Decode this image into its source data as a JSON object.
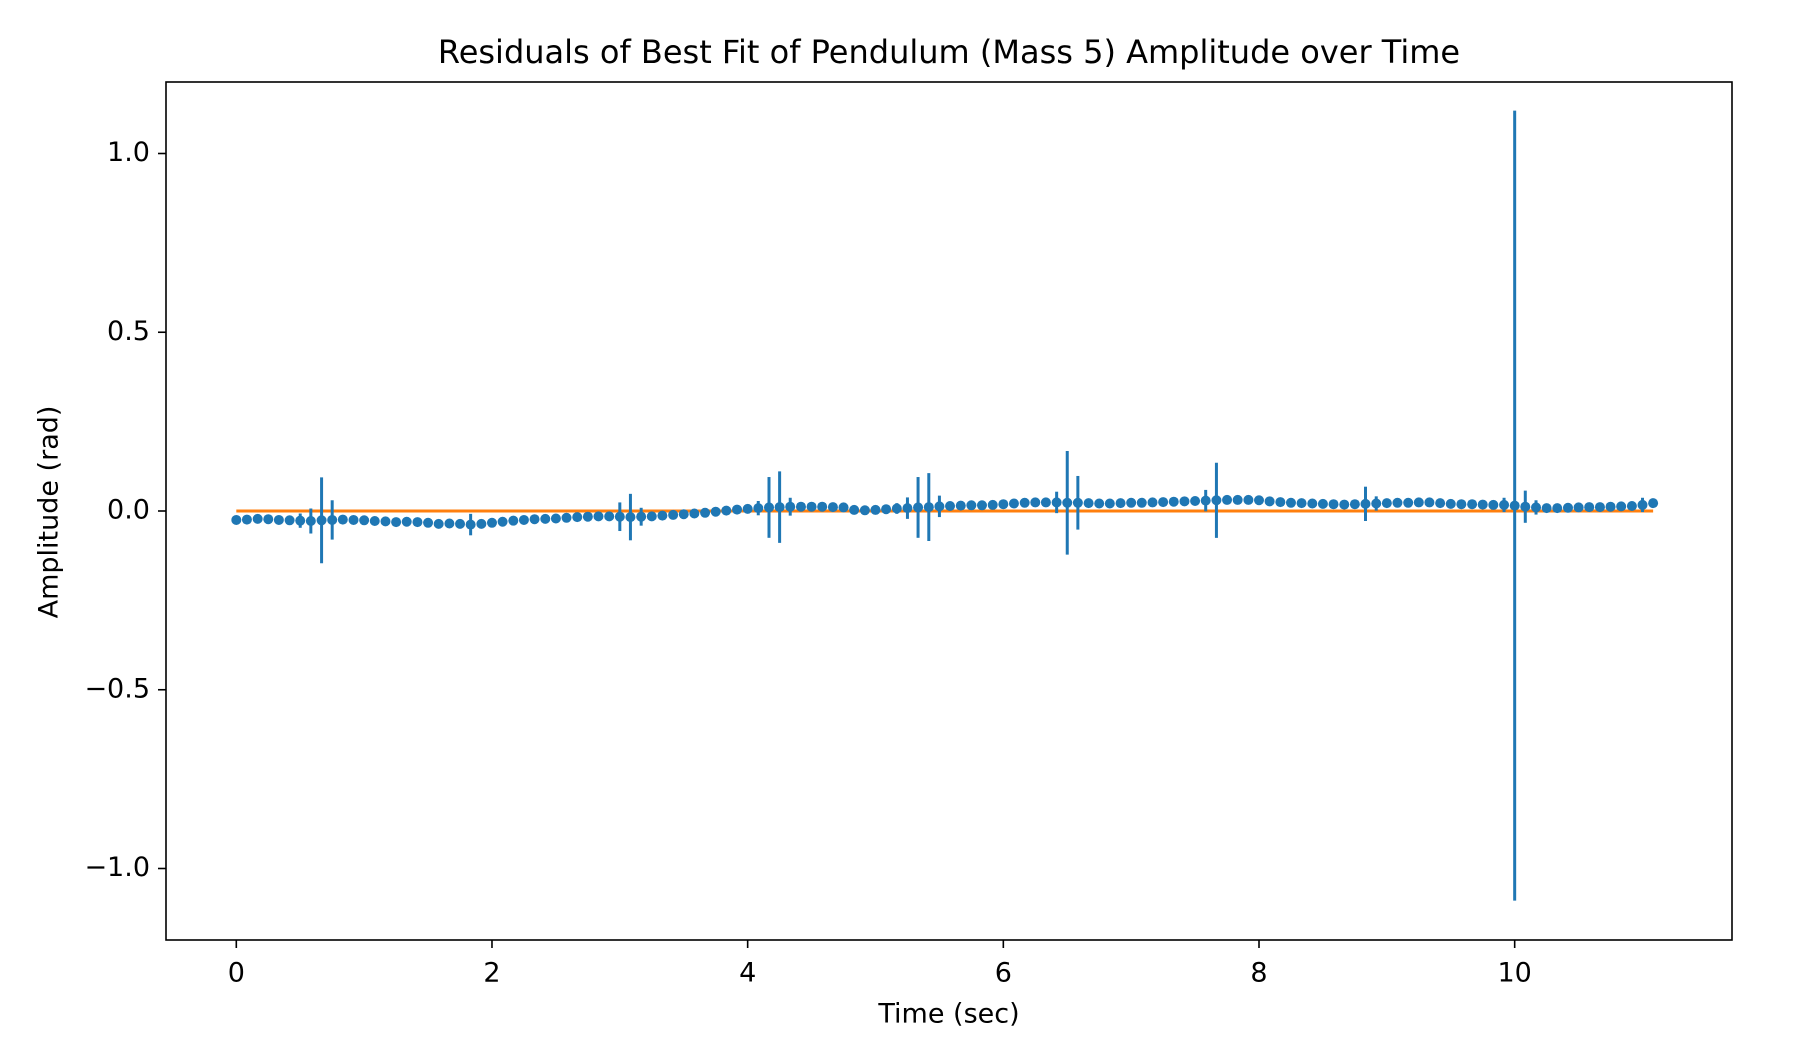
{
  "chart_data": {
    "type": "scatter",
    "title": "Residuals of Best Fit of Pendulum (Mass 5) Amplitude over Time",
    "xlabel": "Time (sec)",
    "ylabel": "Amplitude (rad)",
    "xlim": [
      -0.55,
      11.7
    ],
    "ylim": [
      -1.2,
      1.2
    ],
    "xticks": [
      0,
      2,
      4,
      6,
      8,
      10
    ],
    "xtick_labels": [
      "0",
      "2",
      "4",
      "6",
      "8",
      "10"
    ],
    "yticks": [
      1.0,
      0.5,
      0.0,
      -0.5,
      -1.0
    ],
    "ytick_labels": [
      "1.0",
      "0.5",
      "0.0",
      "−0.5",
      "−1.0"
    ],
    "grid": false,
    "legend": "none",
    "colors": {
      "residuals": "#1f77b4",
      "zero_line": "#ff7f0e",
      "axes": "#000000"
    },
    "series": [
      {
        "kind": "errorbar",
        "x": [
          0.0,
          0.083,
          0.167,
          0.25,
          0.333,
          0.417,
          0.5,
          0.583,
          0.667,
          0.75,
          0.833,
          0.917,
          1.0,
          1.083,
          1.167,
          1.25,
          1.333,
          1.417,
          1.5,
          1.583,
          1.667,
          1.75,
          1.833,
          1.917,
          2.0,
          2.083,
          2.167,
          2.25,
          2.333,
          2.417,
          2.5,
          2.583,
          2.667,
          2.75,
          2.833,
          2.917,
          3.0,
          3.083,
          3.167,
          3.25,
          3.333,
          3.417,
          3.5,
          3.583,
          3.667,
          3.75,
          3.833,
          3.917,
          4.0,
          4.083,
          4.167,
          4.25,
          4.333,
          4.417,
          4.5,
          4.583,
          4.667,
          4.75,
          4.833,
          4.917,
          5.0,
          5.083,
          5.167,
          5.25,
          5.333,
          5.417,
          5.5,
          5.583,
          5.667,
          5.75,
          5.833,
          5.917,
          6.0,
          6.083,
          6.167,
          6.25,
          6.333,
          6.417,
          6.5,
          6.583,
          6.667,
          6.75,
          6.833,
          6.917,
          7.0,
          7.083,
          7.167,
          7.25,
          7.333,
          7.417,
          7.5,
          7.583,
          7.667,
          7.75,
          7.833,
          7.917,
          8.0,
          8.083,
          8.167,
          8.25,
          8.333,
          8.417,
          8.5,
          8.583,
          8.667,
          8.75,
          8.833,
          8.917,
          9.0,
          9.083,
          9.167,
          9.25,
          9.333,
          9.417,
          9.5,
          9.583,
          9.667,
          9.75,
          9.833,
          9.917,
          10.0,
          10.083,
          10.167,
          10.25,
          10.333,
          10.417,
          10.5,
          10.583,
          10.667,
          10.75,
          10.833,
          10.917,
          11.0,
          11.083
        ],
        "y": [
          -0.025,
          -0.024,
          -0.022,
          -0.023,
          -0.025,
          -0.026,
          -0.027,
          -0.028,
          -0.026,
          -0.025,
          -0.024,
          -0.025,
          -0.026,
          -0.028,
          -0.029,
          -0.031,
          -0.03,
          -0.031,
          -0.033,
          -0.036,
          -0.035,
          -0.036,
          -0.038,
          -0.036,
          -0.033,
          -0.03,
          -0.027,
          -0.025,
          -0.023,
          -0.022,
          -0.021,
          -0.019,
          -0.017,
          -0.016,
          -0.015,
          -0.015,
          -0.016,
          -0.017,
          -0.016,
          -0.015,
          -0.013,
          -0.011,
          -0.009,
          -0.007,
          -0.005,
          -0.002,
          0.001,
          0.004,
          0.006,
          0.008,
          0.01,
          0.011,
          0.012,
          0.012,
          0.012,
          0.012,
          0.011,
          0.01,
          0.003,
          0.002,
          0.003,
          0.005,
          0.007,
          0.008,
          0.01,
          0.011,
          0.013,
          0.014,
          0.015,
          0.016,
          0.016,
          0.017,
          0.019,
          0.021,
          0.023,
          0.024,
          0.024,
          0.024,
          0.023,
          0.023,
          0.022,
          0.021,
          0.021,
          0.022,
          0.023,
          0.023,
          0.024,
          0.025,
          0.026,
          0.027,
          0.028,
          0.029,
          0.03,
          0.031,
          0.031,
          0.031,
          0.03,
          0.027,
          0.025,
          0.023,
          0.022,
          0.021,
          0.02,
          0.019,
          0.018,
          0.019,
          0.02,
          0.021,
          0.022,
          0.023,
          0.023,
          0.024,
          0.024,
          0.022,
          0.02,
          0.019,
          0.019,
          0.018,
          0.017,
          0.017,
          0.015,
          0.012,
          0.01,
          0.008,
          0.008,
          0.009,
          0.01,
          0.011,
          0.011,
          0.012,
          0.013,
          0.014,
          0.017,
          0.022
        ],
        "yerr": [
          0.006,
          0.005,
          0.005,
          0.005,
          0.006,
          0.006,
          0.02,
          0.035,
          0.12,
          0.055,
          0.006,
          0.005,
          0.005,
          0.005,
          0.005,
          0.006,
          0.005,
          0.005,
          0.005,
          0.006,
          0.005,
          0.006,
          0.03,
          0.006,
          0.005,
          0.005,
          0.005,
          0.005,
          0.005,
          0.005,
          0.005,
          0.005,
          0.006,
          0.005,
          0.005,
          0.005,
          0.04,
          0.065,
          0.025,
          0.006,
          0.005,
          0.005,
          0.005,
          0.005,
          0.005,
          0.005,
          0.005,
          0.006,
          0.006,
          0.02,
          0.085,
          0.1,
          0.025,
          0.008,
          0.005,
          0.005,
          0.005,
          0.005,
          0.005,
          0.005,
          0.006,
          0.006,
          0.015,
          0.03,
          0.085,
          0.095,
          0.03,
          0.01,
          0.005,
          0.005,
          0.005,
          0.005,
          0.005,
          0.006,
          0.005,
          0.006,
          0.006,
          0.03,
          0.145,
          0.075,
          0.006,
          0.005,
          0.005,
          0.005,
          0.005,
          0.005,
          0.005,
          0.006,
          0.006,
          0.01,
          0.012,
          0.03,
          0.105,
          0.012,
          0.006,
          0.005,
          0.005,
          0.005,
          0.005,
          0.005,
          0.005,
          0.005,
          0.005,
          0.005,
          0.006,
          0.006,
          0.048,
          0.02,
          0.012,
          0.006,
          0.005,
          0.005,
          0.005,
          0.005,
          0.005,
          0.006,
          0.005,
          0.006,
          0.006,
          0.02,
          1.105,
          0.045,
          0.02,
          0.006,
          0.005,
          0.005,
          0.005,
          0.005,
          0.005,
          0.005,
          0.005,
          0.006,
          0.02,
          0.01
        ]
      },
      {
        "kind": "line",
        "x": [
          0,
          11.083
        ],
        "y": [
          0,
          0
        ]
      }
    ]
  }
}
